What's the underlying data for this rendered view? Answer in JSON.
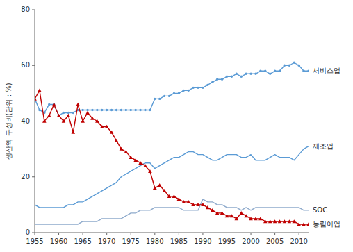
{
  "chart_data": {
    "type": "line",
    "y_label": "생산액 구성비(단위 : %)",
    "xlim": [
      1955,
      2012
    ],
    "ylim": [
      0,
      80
    ],
    "xticks": [
      1955,
      1960,
      1965,
      1970,
      1975,
      1980,
      1985,
      1990,
      1995,
      2000,
      2005,
      2010
    ],
    "yticks": [
      0,
      20,
      40,
      60,
      80
    ],
    "grid": false,
    "x": [
      1955,
      1956,
      1957,
      1958,
      1959,
      1960,
      1961,
      1962,
      1963,
      1964,
      1965,
      1966,
      1967,
      1968,
      1969,
      1970,
      1971,
      1972,
      1973,
      1974,
      1975,
      1976,
      1977,
      1978,
      1979,
      1980,
      1981,
      1982,
      1983,
      1984,
      1985,
      1986,
      1987,
      1988,
      1989,
      1990,
      1991,
      1992,
      1993,
      1994,
      1995,
      1996,
      1997,
      1998,
      1999,
      2000,
      2001,
      2002,
      2003,
      2004,
      2005,
      2006,
      2007,
      2008,
      2009,
      2010,
      2011,
      2012
    ],
    "series": [
      {
        "name": "SOC",
        "color": "#8eaacc",
        "values": [
          3,
          3,
          3,
          3,
          3,
          3,
          3,
          3,
          3,
          3,
          4,
          4,
          4,
          4,
          5,
          5,
          5,
          5,
          5,
          6,
          7,
          7,
          8,
          8,
          8,
          9,
          9,
          9,
          9,
          9,
          9,
          8,
          8,
          8,
          8,
          12,
          11,
          11,
          10,
          10,
          9,
          9,
          9,
          8,
          9,
          8,
          9,
          9,
          9,
          9,
          9,
          9,
          9,
          9,
          9,
          9,
          8,
          8
        ]
      },
      {
        "name": "제조업",
        "color": "#5b9bd5",
        "values": [
          10,
          9,
          9,
          9,
          9,
          9,
          9,
          10,
          10,
          11,
          11,
          12,
          13,
          14,
          15,
          16,
          17,
          18,
          20,
          21,
          22,
          23,
          24,
          25,
          25,
          23,
          24,
          25,
          26,
          27,
          27,
          28,
          29,
          29,
          28,
          28,
          27,
          26,
          26,
          27,
          28,
          28,
          28,
          27,
          27,
          28,
          26,
          26,
          26,
          27,
          28,
          27,
          27,
          27,
          26,
          28,
          30,
          31
        ]
      },
      {
        "name": "서비스업",
        "color": "#5b9bd5",
        "marker": "point",
        "values": [
          48,
          44,
          43,
          46,
          46,
          42,
          43,
          43,
          43,
          44,
          44,
          44,
          44,
          44,
          44,
          44,
          44,
          44,
          44,
          44,
          44,
          44,
          44,
          44,
          44,
          48,
          48,
          49,
          49,
          50,
          50,
          51,
          51,
          52,
          52,
          52,
          53,
          54,
          55,
          55,
          56,
          56,
          57,
          56,
          57,
          57,
          57,
          58,
          58,
          57,
          58,
          58,
          60,
          60,
          61,
          60,
          58,
          58
        ]
      },
      {
        "name": "농림어업",
        "color": "#c00000",
        "marker": "triangle",
        "values": [
          48,
          51,
          40,
          42,
          46,
          42,
          40,
          42,
          36,
          46,
          40,
          43,
          41,
          40,
          38,
          38,
          36,
          33,
          30,
          29,
          27,
          26,
          25,
          24,
          22,
          16,
          17,
          15,
          13,
          13,
          12,
          11,
          11,
          10,
          10,
          10,
          9,
          8,
          7,
          7,
          6,
          6,
          5,
          7,
          6,
          5,
          5,
          5,
          4,
          4,
          4,
          4,
          4,
          4,
          4,
          3,
          3,
          3
        ]
      }
    ]
  }
}
